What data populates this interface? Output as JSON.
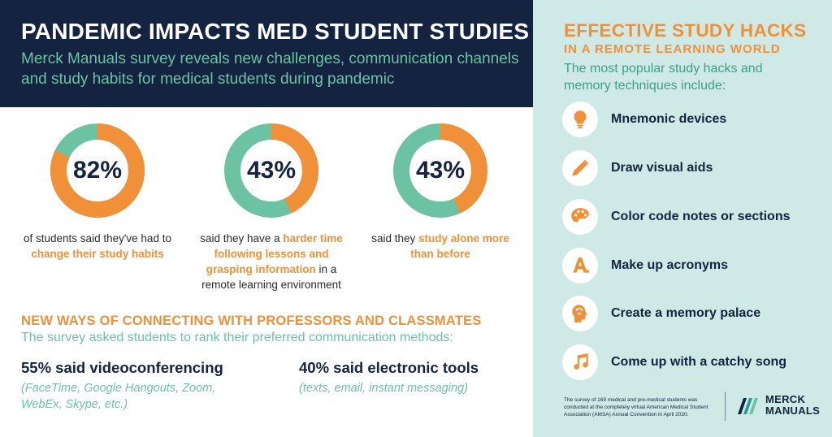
{
  "header": {
    "title": "PANDEMIC IMPACTS MED STUDENT STUDIES",
    "subtitle": "Merck Manuals survey reveals new challenges, communication channels and study habits for medical students during pandemic"
  },
  "colors": {
    "navy": "#14233f",
    "orange": "#f0913a",
    "teal": "#6cc3a4",
    "panel": "#cfe9e6"
  },
  "stats": [
    {
      "value": "82%",
      "percent": 82,
      "pre": "of students said they've had to ",
      "highlight": "change their study habits",
      "post": ""
    },
    {
      "value": "43%",
      "percent": 43,
      "pre": "said they have a ",
      "highlight": "harder time following lessons and grasping information",
      "post": " in a remote learning environment"
    },
    {
      "value": "43%",
      "percent": 43,
      "pre": "said they ",
      "highlight": "study alone more than before",
      "post": ""
    }
  ],
  "connect": {
    "title": "NEW WAYS OF CONNECTING WITH PROFESSORS AND CLASSMATES",
    "subtitle": "The survey asked students to rank their preferred communication methods:",
    "methods": [
      {
        "label": "55% said videoconferencing",
        "detail_line1": "(FaceTime, Google Hangouts, Zoom,",
        "detail_line2": "WebEx, Skype, etc.)"
      },
      {
        "label": "40% said electronic tools",
        "detail_line1": "(texts, email, instant messaging)",
        "detail_line2": ""
      }
    ]
  },
  "hacks": {
    "title": "EFFECTIVE STUDY HACKS",
    "title2": "IN A REMOTE LEARNING WORLD",
    "subtitle": "The most popular study hacks and memory techniques include:",
    "items": [
      {
        "label": "Mnemonic devices",
        "icon": "lightbulb-icon"
      },
      {
        "label": "Draw visual aids",
        "icon": "pencil-icon"
      },
      {
        "label": "Color code notes or sections",
        "icon": "palette-icon"
      },
      {
        "label": "Make up acronyms",
        "icon": "letter-a-icon"
      },
      {
        "label": "Create a memory palace",
        "icon": "brain-head-icon"
      },
      {
        "label": "Come up with a catchy song",
        "icon": "music-note-icon"
      }
    ]
  },
  "footer": {
    "note": "The survey of 169 medical and pre-medical students was conducted at the completely virtual American Medical Student Association (AMSA) Annual Convention in April 2020.",
    "logo_line1": "MERCK",
    "logo_line2": "MANUALS"
  }
}
